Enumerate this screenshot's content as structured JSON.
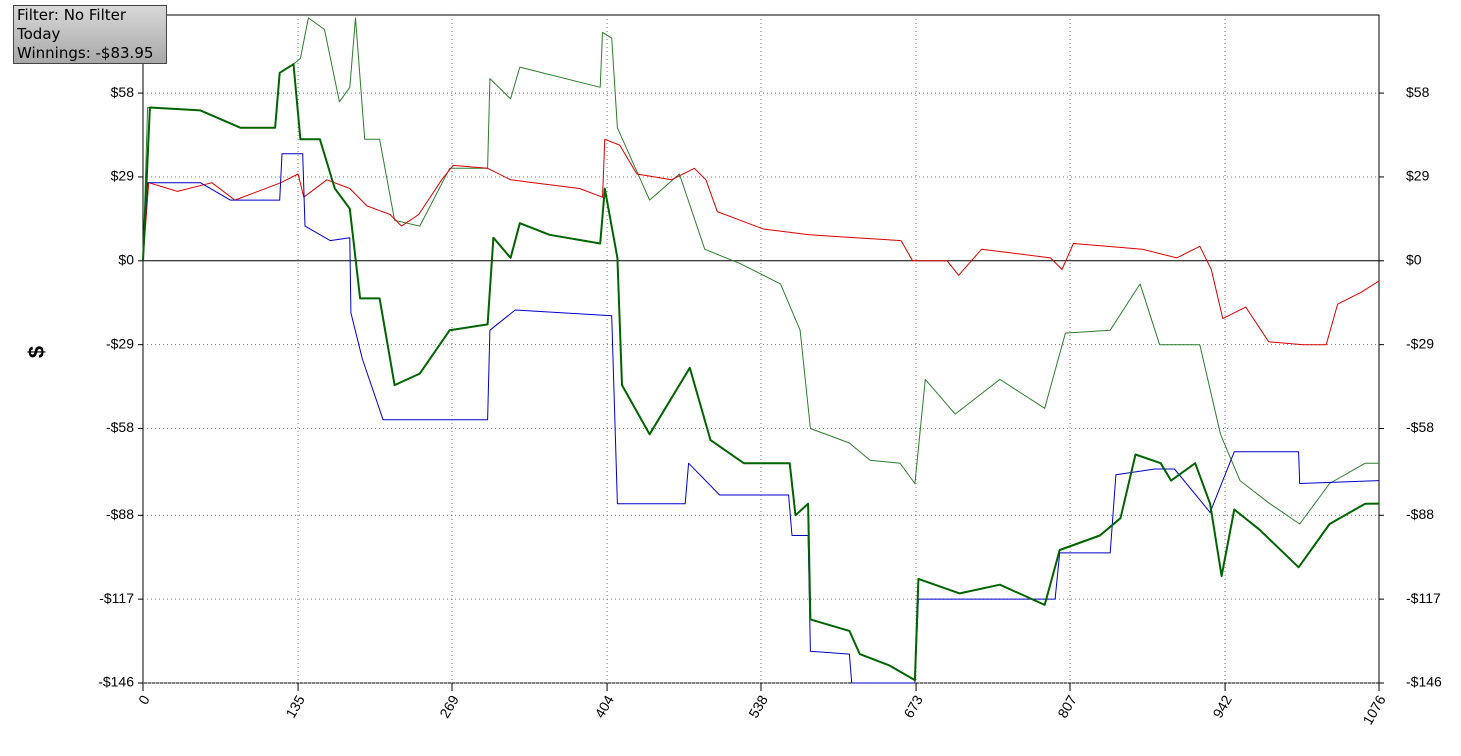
{
  "info": {
    "filter": "Filter: No Filter",
    "period": "Today",
    "winnings": "Winnings: -$83.95"
  },
  "chart_data": {
    "type": "line",
    "y_label": "$",
    "xlim": [
      0,
      1076
    ],
    "xticks": [
      0,
      135,
      269,
      404,
      538,
      673,
      807,
      942,
      1076
    ],
    "ylim": [
      -146,
      85
    ],
    "yticks": [
      {
        "value": -146,
        "label": "-$146"
      },
      {
        "value": -117,
        "label": "-$117"
      },
      {
        "value": -88,
        "label": "-$88"
      },
      {
        "value": -58,
        "label": "-$58"
      },
      {
        "value": -29,
        "label": "-$29"
      },
      {
        "value": 0,
        "label": "$0"
      },
      {
        "value": 29,
        "label": "$29"
      },
      {
        "value": 58,
        "label": "$58"
      }
    ],
    "grid": true,
    "series": [
      {
        "color": "#2e7d2e",
        "width": 1,
        "x": [
          0,
          4,
          50,
          84,
          115,
          119,
          131,
          137,
          144,
          158,
          171,
          180,
          185,
          193,
          206,
          219,
          241,
          267,
          300,
          302,
          320,
          328,
          398,
          400,
          408,
          413,
          441,
          467,
          489,
          520,
          555,
          572,
          581,
          615,
          633,
          659,
          672,
          681,
          707,
          746,
          785,
          803,
          842,
          868,
          885,
          920,
          938,
          955,
          981,
          1007,
          1033,
          1064,
          1076
        ],
        "values": [
          0,
          53,
          52,
          46,
          46,
          65,
          68,
          70,
          84,
          80,
          55,
          60,
          84,
          42,
          42,
          14,
          12,
          32,
          32,
          63,
          56,
          67,
          60,
          79,
          77,
          46,
          21,
          30,
          4,
          -1,
          -8,
          -24,
          -58,
          -63,
          -69,
          -70,
          -77,
          -41,
          -53,
          -41,
          -51,
          -25,
          -24,
          -8,
          -29,
          -29,
          -60,
          -76,
          -84,
          -91,
          -77,
          -70,
          -70
        ]
      },
      {
        "color": "#dd0000",
        "width": 1,
        "x": [
          0,
          5,
          30,
          60,
          80,
          120,
          135,
          140,
          160,
          180,
          195,
          215,
          225,
          240,
          260,
          270,
          300,
          320,
          340,
          380,
          400,
          402,
          415,
          430,
          460,
          480,
          490,
          500,
          520,
          540,
          580,
          620,
          660,
          670,
          700,
          710,
          730,
          790,
          800,
          810,
          870,
          900,
          920,
          930,
          940,
          960,
          980,
          1010,
          1030,
          1040,
          1060,
          1076
        ],
        "values": [
          0,
          27,
          24,
          27,
          21,
          27,
          30,
          22,
          28,
          25,
          19,
          16,
          12,
          16,
          28,
          33,
          32,
          28,
          27,
          25,
          22,
          42,
          40,
          30,
          28,
          32,
          28,
          17,
          14,
          11,
          9,
          8,
          7,
          0,
          0,
          -5,
          4,
          1,
          -3,
          6,
          4,
          1,
          5,
          -3,
          -20,
          -16,
          -28,
          -29,
          -29,
          -15,
          -11,
          -7
        ]
      },
      {
        "color": "#0000cc",
        "width": 1,
        "x": [
          0,
          4,
          50,
          76,
          119,
          121,
          139,
          141,
          163,
          180,
          181,
          191,
          209,
          300,
          302,
          324,
          408,
          413,
          472,
          475,
          502,
          562,
          565,
          579,
          581,
          615,
          617,
          672,
          675,
          794,
          798,
          842,
          847,
          881,
          898,
          929,
          950,
          1006,
          1007,
          1076
        ],
        "values": [
          0,
          27,
          27,
          21,
          21,
          37,
          37,
          12,
          7,
          8,
          -18,
          -34,
          -55,
          -55,
          -24,
          -17,
          -19,
          -84,
          -84,
          -70,
          -81,
          -81,
          -95,
          -95,
          -135,
          -136,
          -146,
          -146,
          -117,
          -117,
          -101,
          -101,
          -74,
          -72,
          -72,
          -87,
          -66,
          -66,
          -77,
          -76
        ]
      },
      {
        "color": "#006400",
        "width": 2,
        "x": [
          0,
          6,
          50,
          85,
          115,
          119,
          131,
          137,
          154,
          167,
          180,
          189,
          206,
          219,
          241,
          267,
          300,
          305,
          320,
          328,
          354,
          398,
          402,
          413,
          417,
          441,
          476,
          494,
          523,
          563,
          568,
          579,
          581,
          615,
          624,
          650,
          672,
          675,
          711,
          746,
          785,
          798,
          833,
          851,
          864,
          886,
          895,
          916,
          929,
          939,
          950,
          972,
          1006,
          1033,
          1064,
          1076
        ],
        "values": [
          0,
          53,
          52,
          46,
          46,
          65,
          68,
          42,
          42,
          25,
          18,
          -13,
          -13,
          -43,
          -39,
          -24,
          -22,
          8,
          1,
          13,
          9,
          6,
          25,
          1,
          -43,
          -60,
          -37,
          -62,
          -70,
          -70,
          -88,
          -84,
          -124,
          -128,
          -136,
          -140,
          -145,
          -110,
          -115,
          -112,
          -119,
          -100,
          -95,
          -89,
          -67,
          -70,
          -76,
          -70,
          -84,
          -109,
          -86,
          -93,
          -106,
          -91,
          -84,
          -83.95
        ]
      }
    ]
  }
}
